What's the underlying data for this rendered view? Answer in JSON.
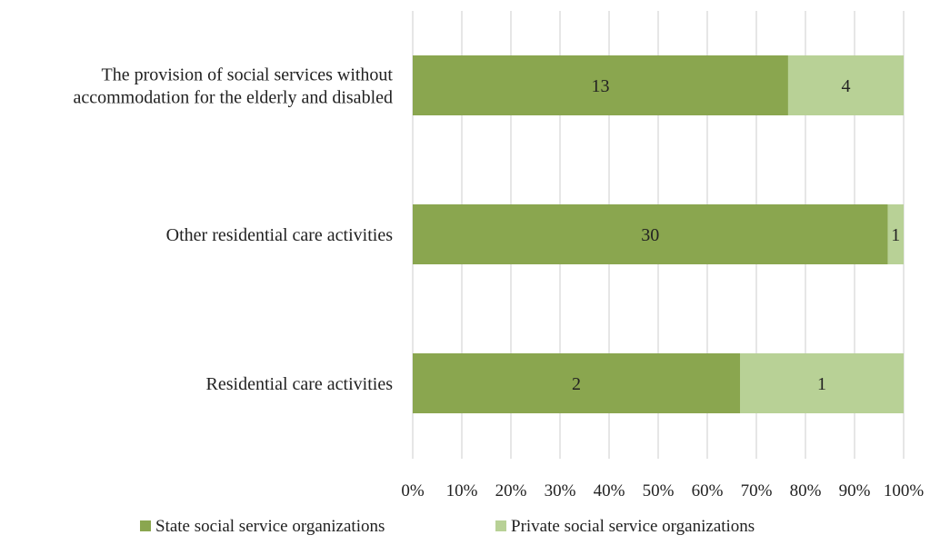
{
  "colors": {
    "state": "#8aa64f",
    "private": "#b8d196",
    "grid": "#d9d9d9",
    "text": "#222222"
  },
  "chart_data": {
    "type": "bar",
    "orientation": "horizontal",
    "stacking": "percent",
    "categories": [
      [
        "The provision of social services without",
        "accommodation for the elderly and disabled"
      ],
      [
        "Other residential care activities"
      ],
      [
        "Residential care activities"
      ]
    ],
    "series": [
      {
        "name": "State social service organizations",
        "values": [
          13,
          30,
          2
        ]
      },
      {
        "name": "Private social service organizations",
        "values": [
          4,
          1,
          1
        ]
      }
    ],
    "xticks": [
      "0%",
      "10%",
      "20%",
      "30%",
      "40%",
      "50%",
      "60%",
      "70%",
      "80%",
      "90%",
      "100%"
    ],
    "xlim": [
      0,
      100
    ],
    "grid": true,
    "legend_position": "bottom"
  }
}
